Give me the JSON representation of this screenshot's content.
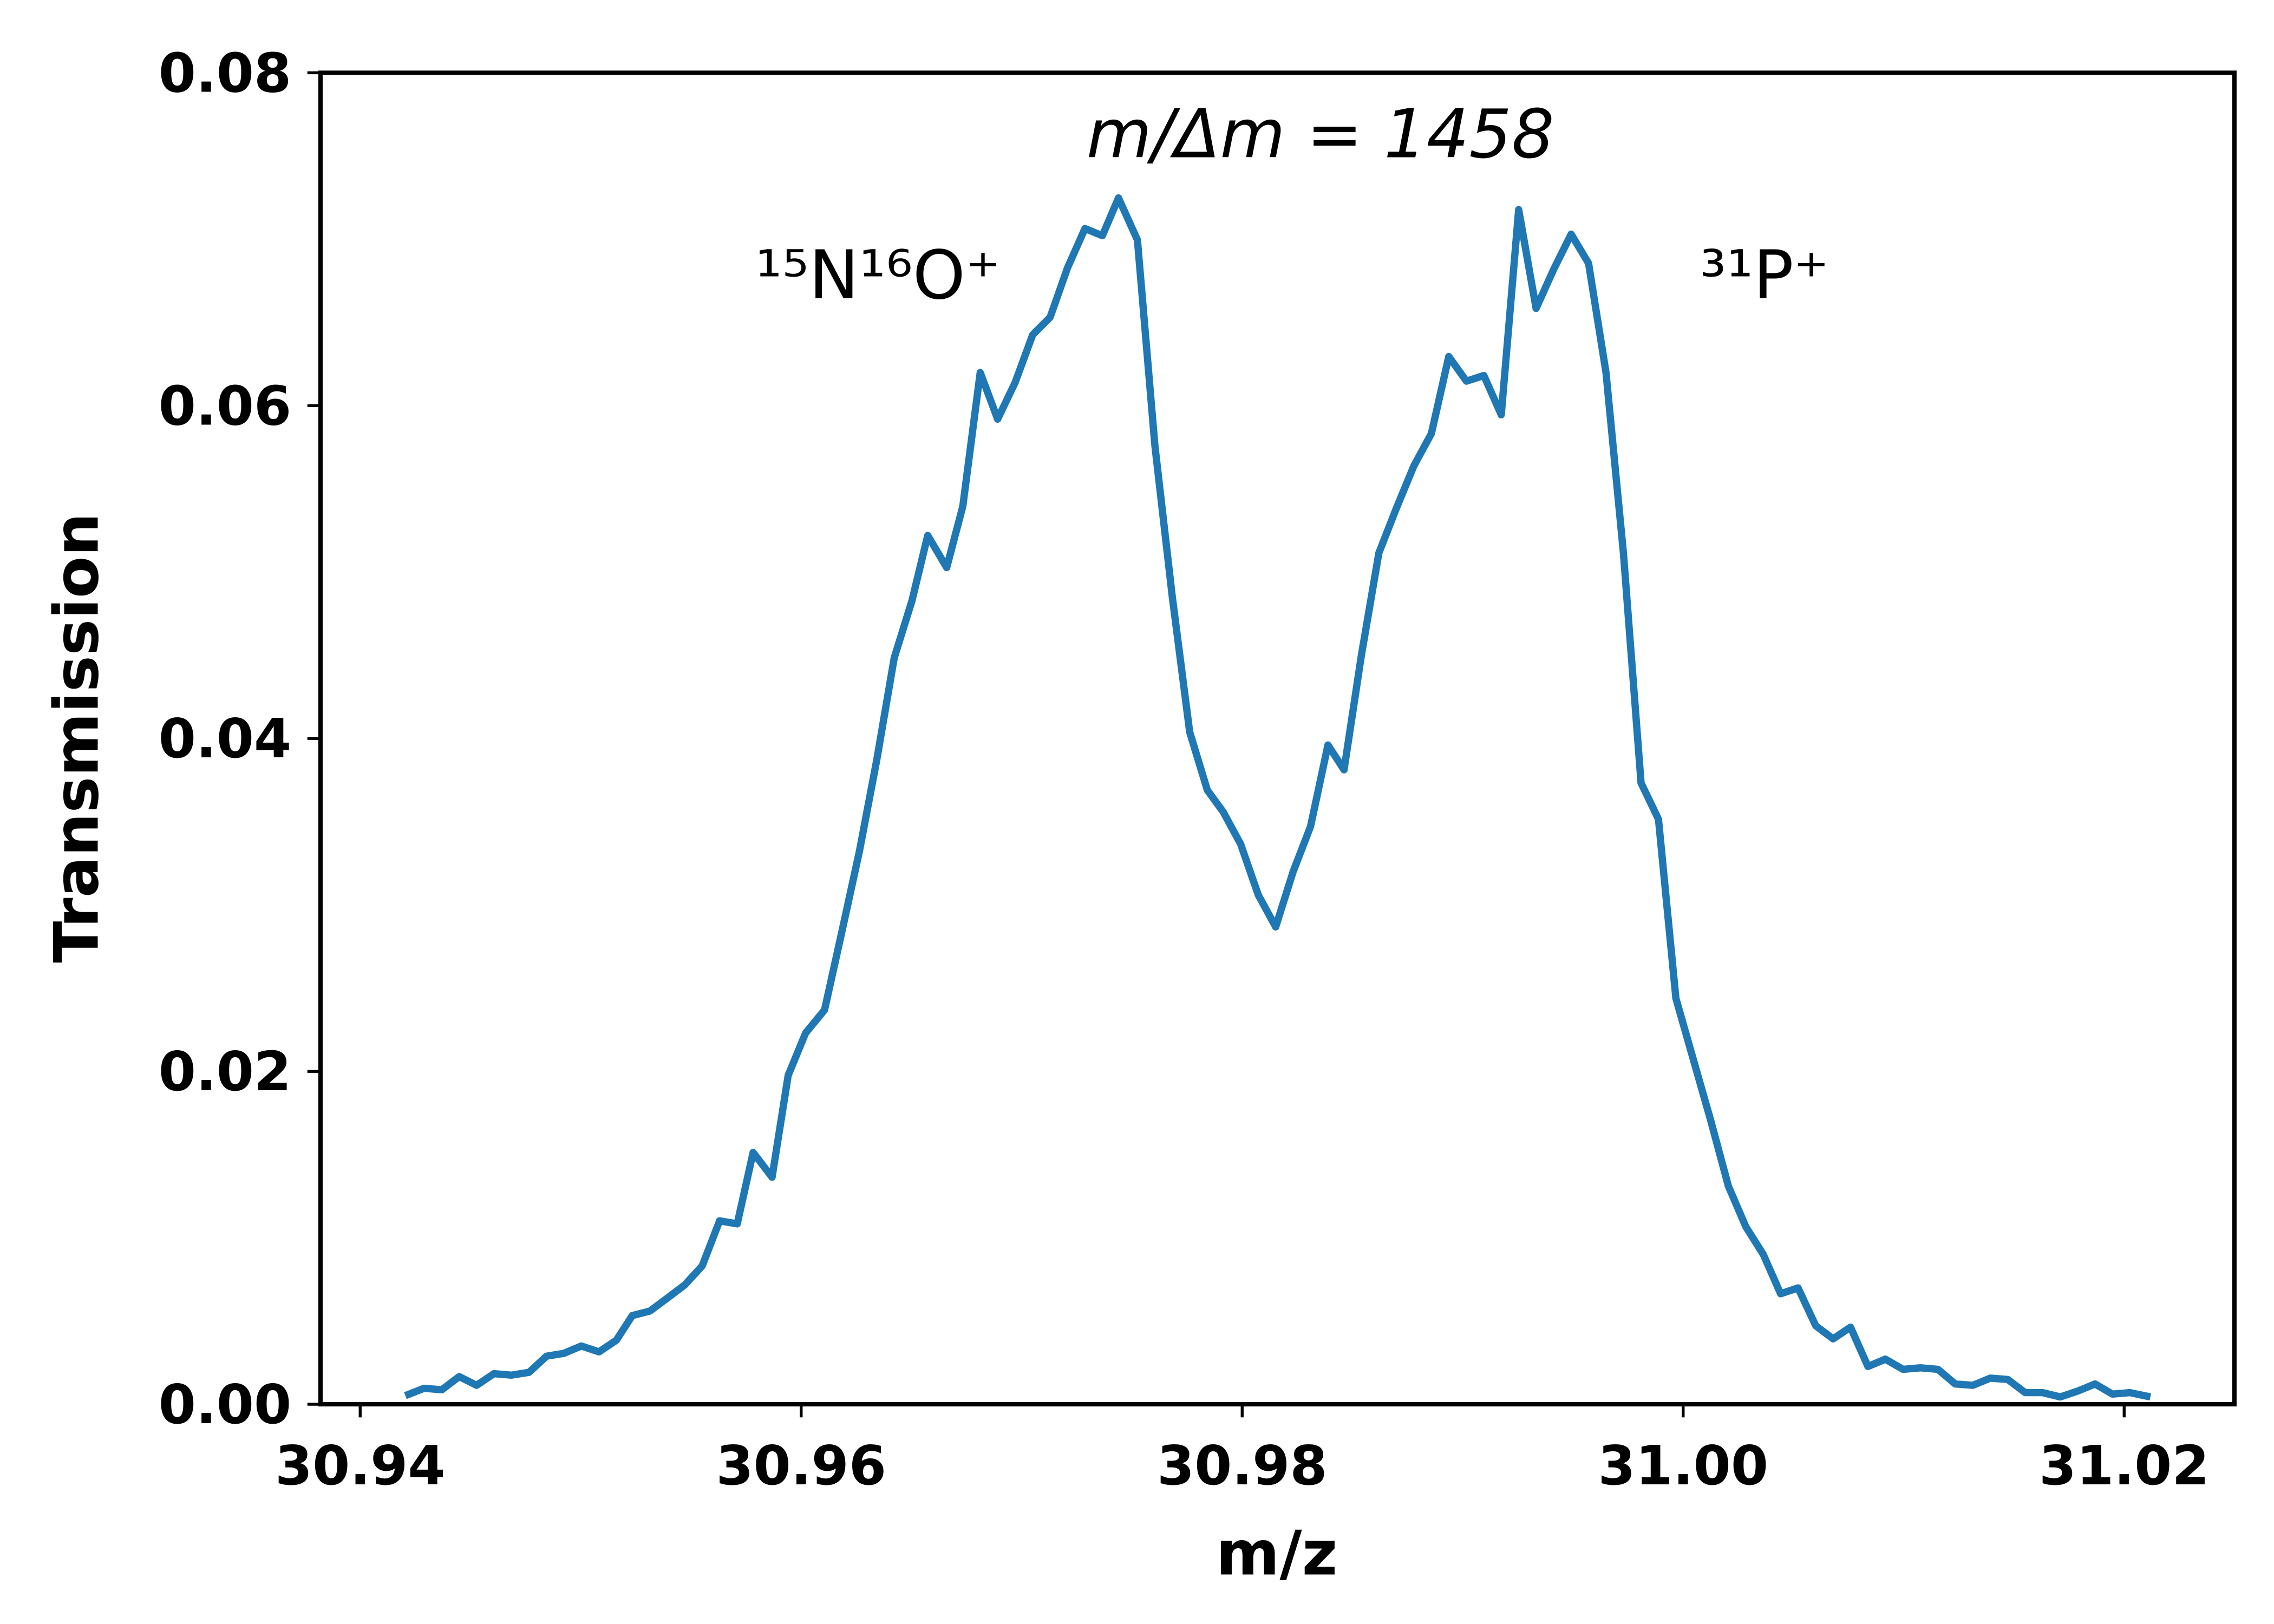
{
  "chart_data": {
    "type": "line",
    "xlabel": "m/z",
    "ylabel": "Transmission",
    "annotations": [
      "m/Δm = 1458",
      "¹⁵N¹⁶O⁺",
      "³¹P⁺"
    ],
    "xlim": [
      30.9382,
      31.025
    ],
    "ylim": [
      0,
      0.08
    ],
    "xticks": [
      30.94,
      30.96,
      30.98,
      {
        "value": 31,
        "label": "31.00"
      },
      31.02
    ],
    "yticks": [
      {
        "value": 0,
        "label": "0.00"
      },
      0.02,
      0.04,
      0.06,
      0.08
    ],
    "x": [
      30.94205,
      30.9429,
      30.9437,
      30.94449,
      30.94528,
      30.94607,
      30.94686,
      30.94766,
      30.94845,
      30.94924,
      30.95003,
      30.95083,
      30.95162,
      30.95234,
      30.95314,
      30.95393,
      30.95472,
      30.95551,
      30.9563,
      30.9571,
      30.95782,
      30.95868,
      30.95941,
      30.9602,
      30.96106,
      30.96185,
      30.96264,
      30.96343,
      30.96422,
      30.96502,
      30.96574,
      30.9666,
      30.96733,
      30.96812,
      30.96891,
      30.9697,
      30.9705,
      30.97129,
      30.97208,
      30.97287,
      30.97366,
      30.97439,
      30.97525,
      30.97604,
      30.97683,
      30.97762,
      30.97842,
      30.97914,
      30.97993,
      30.98073,
      30.98152,
      30.98231,
      30.9831,
      30.98389,
      30.98462,
      30.98541,
      30.9862,
      30.987,
      30.98779,
      30.98858,
      30.98937,
      30.99017,
      30.99096,
      30.99175,
      30.99254,
      30.99333,
      30.99413,
      30.99492,
      30.99571,
      30.9965,
      30.99729,
      30.99809,
      30.99888,
      30.99967,
      31.00046,
      31.00125,
      31.00205,
      31.00284,
      31.00363,
      31.00442,
      31.00521,
      31.00601,
      31.0068,
      31.00759,
      31.00838,
      31.00917,
      31.00997,
      31.01076,
      31.01155,
      31.01234,
      31.01314,
      31.01393,
      31.01472,
      31.01551,
      31.0163,
      31.0171,
      31.01789,
      31.01868,
      31.01947,
      31.02026,
      31.02119
    ],
    "series": [
      {
        "color": "#1f77b4",
        "values": [
          0.00052,
          0.00096,
          0.00087,
          0.00166,
          0.00114,
          0.00184,
          0.00175,
          0.00192,
          0.00289,
          0.00306,
          0.0035,
          0.00315,
          0.00385,
          0.00533,
          0.0056,
          0.00638,
          0.00717,
          0.00831,
          0.01102,
          0.01084,
          0.01513,
          0.01364,
          0.01976,
          0.0223,
          0.02369,
          0.02842,
          0.03322,
          0.03873,
          0.04485,
          0.04826,
          0.0522,
          0.05027,
          0.05395,
          0.06199,
          0.05919,
          0.06138,
          0.06426,
          0.06531,
          0.06828,
          0.07064,
          0.07021,
          0.07248,
          0.06995,
          0.05762,
          0.04852,
          0.04039,
          0.0369,
          0.03559,
          0.03366,
          0.0306,
          0.02868,
          0.032,
          0.03471,
          0.03961,
          0.03812,
          0.04503,
          0.05115,
          0.05386,
          0.05639,
          0.05832,
          0.06295,
          0.06147,
          0.06181,
          0.05945,
          0.07178,
          0.06584,
          0.0682,
          0.0703,
          0.06855,
          0.06199,
          0.05115,
          0.03733,
          0.03515,
          0.02439,
          0.02072,
          0.01705,
          0.01311,
          0.01067,
          0.00901,
          0.00664,
          0.00699,
          0.00472,
          0.00393,
          0.00463,
          0.00227,
          0.00271,
          0.0021,
          0.00219,
          0.0021,
          0.00122,
          0.00114,
          0.00157,
          0.00149,
          0.0007,
          0.0007,
          0.00044,
          0.00079,
          0.00122,
          0.00061,
          0.0007,
          0.00044
        ]
      }
    ]
  }
}
